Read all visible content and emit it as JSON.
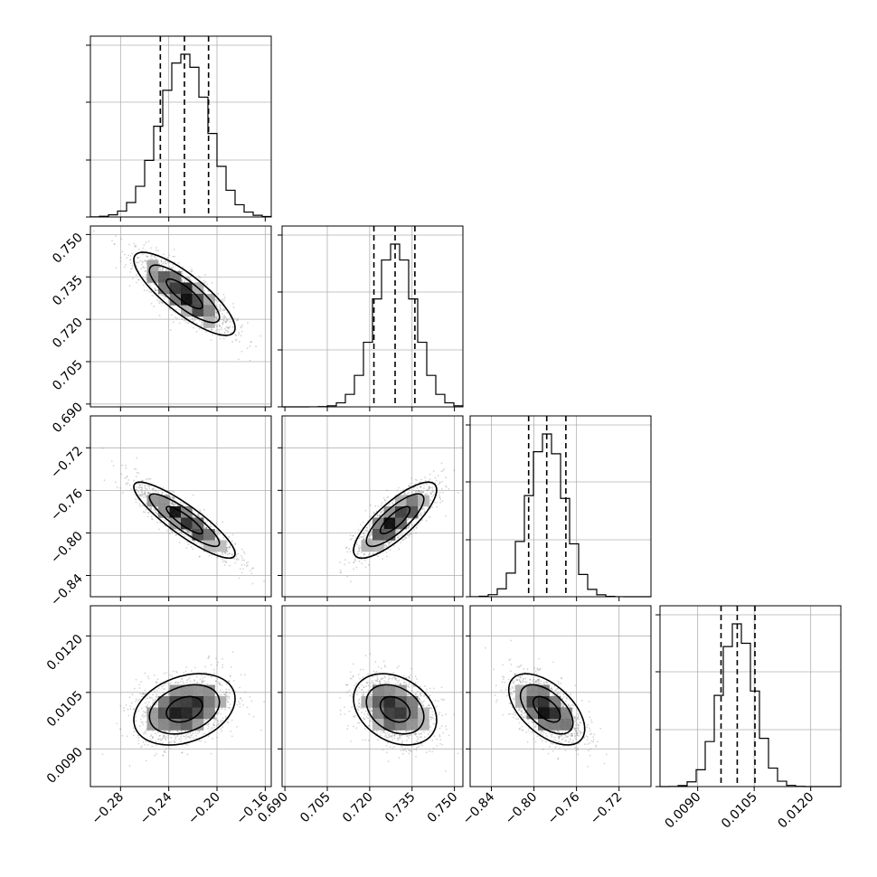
{
  "chart_data": {
    "type": "corner",
    "description_free": true,
    "params": [
      {
        "index": 0,
        "center": -0.227,
        "sigma": 0.02,
        "quantiles": [
          -0.247,
          -0.227,
          -0.207
        ],
        "lim": [
          -0.305,
          -0.155
        ],
        "ticks": [
          -0.28,
          -0.24,
          -0.2,
          -0.16
        ],
        "tick_labels": [
          "−0.28",
          "−0.24",
          "−0.20",
          "−0.16"
        ],
        "hist_ticks": [
          -0.28,
          -0.24,
          -0.2
        ]
      },
      {
        "index": 1,
        "center": 0.729,
        "sigma": 0.007,
        "quantiles": [
          0.7215,
          0.729,
          0.736
        ],
        "lim": [
          0.689,
          0.753
        ],
        "ticks": [
          0.69,
          0.705,
          0.72,
          0.735,
          0.75
        ],
        "tick_labels": [
          "0.690",
          "0.705",
          "0.720",
          "0.735",
          "0.750"
        ],
        "hist_ticks": [
          0.705,
          0.72,
          0.735
        ]
      },
      {
        "index": 2,
        "center": -0.788,
        "sigma": 0.017,
        "quantiles": [
          -0.805,
          -0.788,
          -0.77
        ],
        "lim": [
          -0.86,
          -0.69
        ],
        "ticks": [
          -0.84,
          -0.8,
          -0.76,
          -0.72
        ],
        "tick_labels": [
          "−0.84",
          "−0.80",
          "−0.76",
          "−0.72"
        ],
        "hist_ticks": [
          -0.84,
          -0.8,
          -0.76
        ]
      },
      {
        "index": 3,
        "center": 0.01005,
        "sigma": 0.00045,
        "quantiles": [
          0.00962,
          0.01005,
          0.01052
        ],
        "lim": [
          0.008,
          0.0128
        ],
        "ticks": [
          0.009,
          0.0105,
          0.012
        ],
        "tick_labels": [
          "0.0090",
          "0.0105",
          "0.0120"
        ],
        "hist_ticks": [
          0.009,
          0.0105,
          0.012
        ]
      }
    ],
    "correlations": [
      {
        "pair": [
          1,
          0
        ],
        "rho": -0.82
      },
      {
        "pair": [
          2,
          0
        ],
        "rho": -0.88
      },
      {
        "pair": [
          2,
          1
        ],
        "rho": 0.8
      },
      {
        "pair": [
          3,
          0
        ],
        "rho": 0.3
      },
      {
        "pair": [
          3,
          1
        ],
        "rho": -0.3
      },
      {
        "pair": [
          3,
          2
        ],
        "rho": -0.55
      }
    ],
    "grid": true,
    "quantile_lines": "dashed",
    "contour_levels": 3,
    "colors": {
      "line": "#000000",
      "points": "#7f7f7f",
      "grid": "#b0b0b0"
    }
  }
}
